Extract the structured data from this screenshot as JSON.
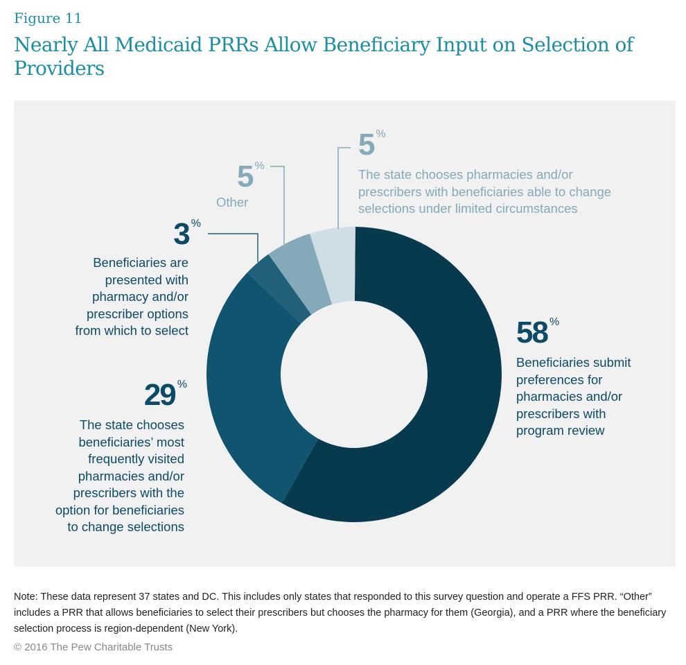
{
  "figure_label": "Figure 11",
  "title": "Nearly All Medicaid PRRs Allow Beneficiary Input on Selection of Providers",
  "chart_data": {
    "type": "pie",
    "donut": true,
    "title": "Nearly All Medicaid PRRs Allow Beneficiary Input on Selection of Providers",
    "slices": [
      {
        "label": "Beneficiaries submit preferences for pharmacies and/or prescribers with program review",
        "value": 58,
        "display": "58",
        "color": "#083a4f"
      },
      {
        "label": "The state chooses beneficiaries’ most frequently visited pharmacies and/or prescribers with the option for beneficiaries to change selections",
        "value": 29,
        "display": "29",
        "color": "#115470"
      },
      {
        "label": "Beneficiaries are presented with pharmacy and/or prescriber options from which to select",
        "value": 3,
        "display": "3",
        "color": "#22607a"
      },
      {
        "label": "Other",
        "value": 5,
        "display": "5",
        "color": "#84a9b8"
      },
      {
        "label": "The state chooses pharmacies and/or prescribers with beneficiaries able to change selections under limited circumstances",
        "value": 5,
        "display": "5",
        "color": "#cfdee5"
      }
    ],
    "unit": "%"
  },
  "note": "Note: These data represent 37 states and DC. This includes only states that responded to this survey question and operate a FFS PRR. “Other” includes a PRR that allows beneficiaries to select their prescribers but chooses the pharmacy for them (Georgia), and a PRR where the beneficiary selection process is region-dependent (New York).",
  "copyright": "© 2016 The Pew Charitable Trusts"
}
